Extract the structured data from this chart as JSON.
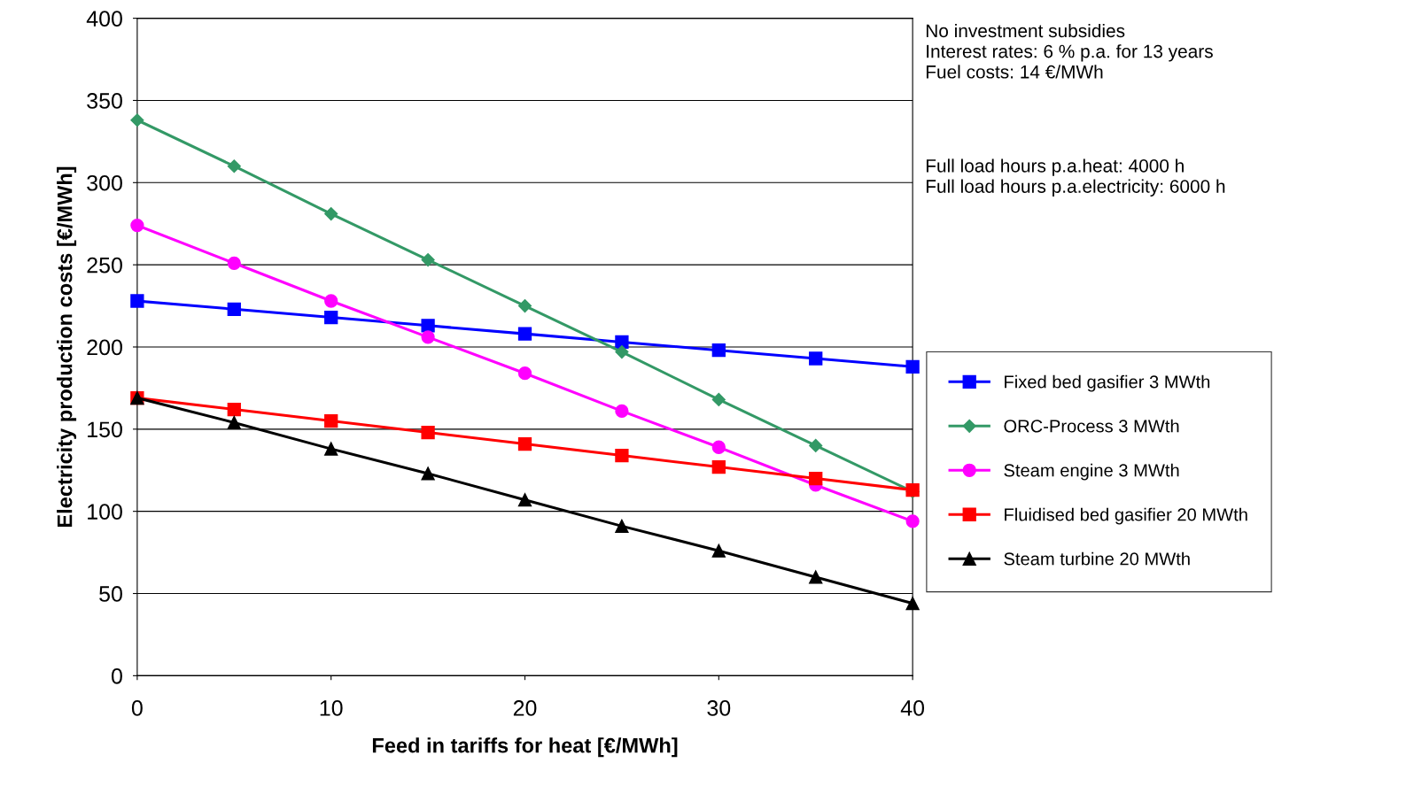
{
  "chart_data": {
    "type": "line",
    "xlabel": "Feed in tariffs for heat [€/MWh]",
    "ylabel": "Electricity production costs [€/MWh]",
    "x": [
      0,
      5,
      10,
      15,
      20,
      25,
      30,
      35,
      40
    ],
    "series": [
      {
        "name": "Fixed bed gasifier 3 MWth",
        "color": "#0000ff",
        "marker": "square",
        "values": [
          228,
          223,
          218,
          213,
          208,
          203,
          198,
          193,
          188
        ]
      },
      {
        "name": "ORC-Process 3 MWth",
        "color": "#339966",
        "marker": "diamond",
        "values": [
          338,
          310,
          281,
          253,
          225,
          197,
          168,
          140,
          112
        ]
      },
      {
        "name": "Steam engine 3 MWth",
        "color": "#ff00ff",
        "marker": "circle",
        "values": [
          274,
          251,
          228,
          206,
          184,
          161,
          139,
          116,
          94
        ]
      },
      {
        "name": "Fluidised bed gasifier 20 MWth",
        "color": "#ff0000",
        "marker": "square",
        "values": [
          169,
          162,
          155,
          148,
          141,
          134,
          127,
          120,
          113
        ]
      },
      {
        "name": "Steam turbine 20 MWth",
        "color": "#000000",
        "marker": "triangle",
        "values": [
          169,
          154,
          138,
          123,
          107,
          91,
          76,
          60,
          44
        ]
      }
    ],
    "xlim": [
      0,
      40
    ],
    "xticks": [
      0,
      10,
      20,
      30,
      40
    ],
    "ylim": [
      0,
      400
    ],
    "yticks": [
      0,
      50,
      100,
      150,
      200,
      250,
      300,
      350,
      400
    ],
    "grid": "y",
    "legend": "right",
    "line_style": "solid",
    "annotations": [
      "No investment subsidies\nInterest rates: 6 % p.a. for 13 years\nFuel costs: 14 €/MWh",
      "Full load hours p.a.heat: 4000 h\nFull load hours p.a.electricity: 6000 h"
    ]
  }
}
